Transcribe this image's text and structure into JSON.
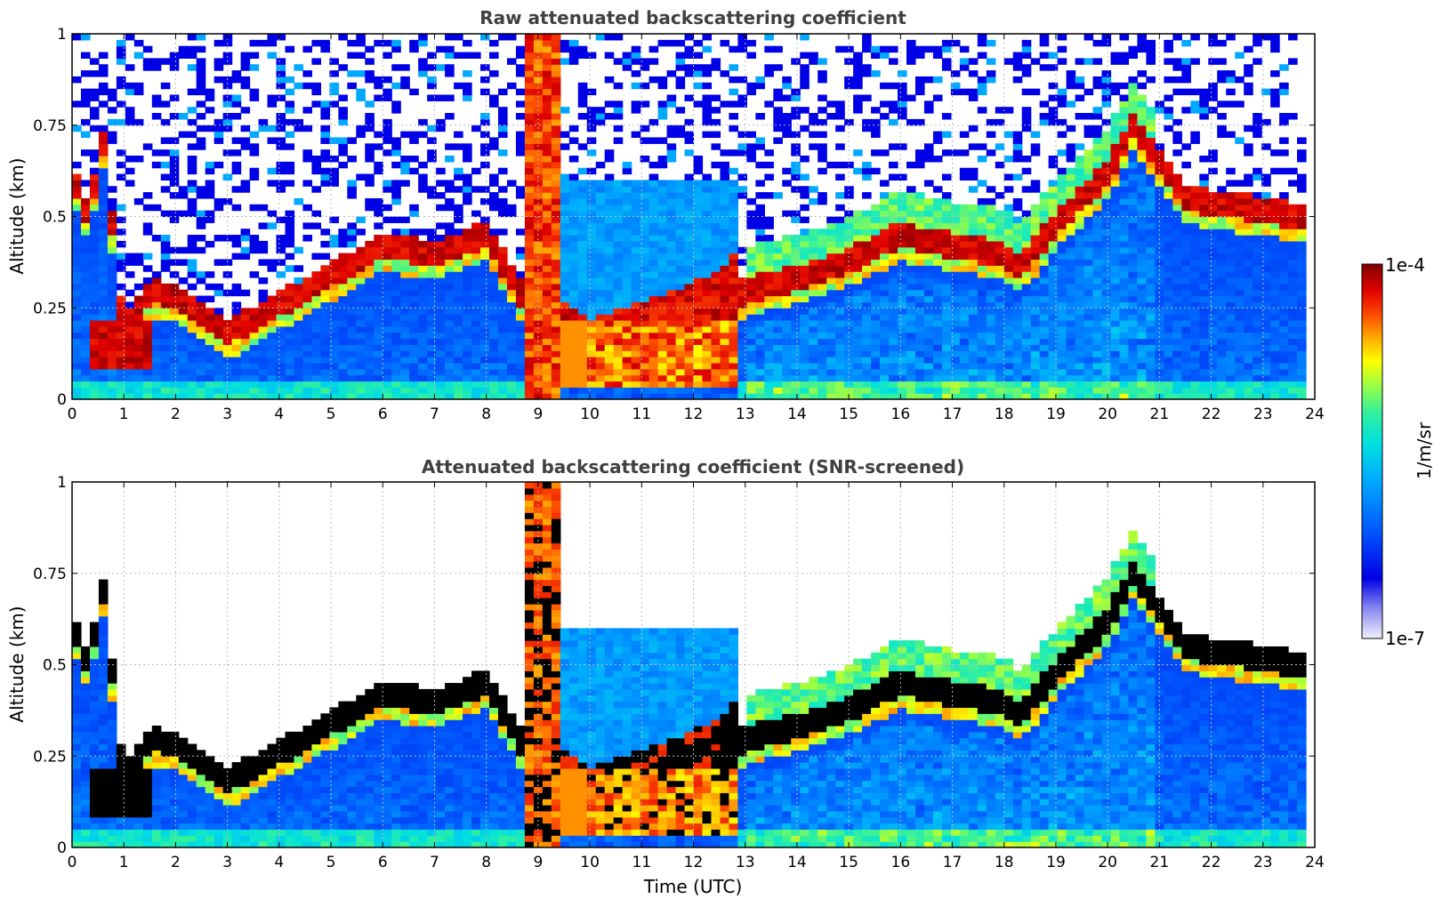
{
  "chart_data": [
    {
      "type": "heatmap",
      "title": "Raw attenuated backscattering coefficient",
      "xlabel": "",
      "ylabel": "Altitude (km)",
      "xlim": [
        0,
        24
      ],
      "ylim": [
        0,
        1
      ],
      "xticks": [
        "0",
        "1",
        "2",
        "3",
        "4",
        "5",
        "6",
        "7",
        "8",
        "9",
        "10",
        "11",
        "12",
        "13",
        "14",
        "15",
        "16",
        "17",
        "18",
        "19",
        "20",
        "21",
        "22",
        "23",
        "24"
      ],
      "yticks": [
        "0",
        "0.25",
        "0.5",
        "0.75",
        "1"
      ],
      "x_data_end_hours": 23.8,
      "color_scale": "log",
      "layer_base_km": [
        [
          0.0,
          0.62
        ],
        [
          0.3,
          0.5
        ],
        [
          0.6,
          0.7
        ],
        [
          1.0,
          0.18
        ],
        [
          1.5,
          0.3
        ],
        [
          2.0,
          0.28
        ],
        [
          3.0,
          0.18
        ],
        [
          4.0,
          0.26
        ],
        [
          5.0,
          0.34
        ],
        [
          6.0,
          0.42
        ],
        [
          7.0,
          0.4
        ],
        [
          8.0,
          0.45
        ],
        [
          8.7,
          0.28
        ],
        [
          9.5,
          0.15
        ],
        [
          10.0,
          0.1
        ],
        [
          11.0,
          0.15
        ],
        [
          12.0,
          0.2
        ],
        [
          12.5,
          0.24
        ],
        [
          13.0,
          0.3
        ],
        [
          14.0,
          0.33
        ],
        [
          15.0,
          0.38
        ],
        [
          16.0,
          0.45
        ],
        [
          17.0,
          0.42
        ],
        [
          18.0,
          0.4
        ],
        [
          18.3,
          0.36
        ],
        [
          19.0,
          0.48
        ],
        [
          20.0,
          0.62
        ],
        [
          20.5,
          0.75
        ],
        [
          21.0,
          0.65
        ],
        [
          21.5,
          0.55
        ],
        [
          23.8,
          0.5
        ]
      ],
      "notes": [
        "Thick low cloud 8.7–12.8 UTC reaching the surface",
        "Elevated layer rising from 0.3 to 0.75 km between 13 and 20.7 UTC"
      ]
    },
    {
      "type": "heatmap",
      "title": "Attenuated backscattering coefficient (SNR-screened)",
      "xlabel": "Time (UTC)",
      "ylabel": "Altitude (km)",
      "xlim": [
        0,
        24
      ],
      "ylim": [
        0,
        1
      ],
      "xticks": [
        "0",
        "1",
        "2",
        "3",
        "4",
        "5",
        "6",
        "7",
        "8",
        "9",
        "10",
        "11",
        "12",
        "13",
        "14",
        "15",
        "16",
        "17",
        "18",
        "19",
        "20",
        "21",
        "22",
        "23",
        "24"
      ],
      "yticks": [
        "0",
        "0.25",
        "0.5",
        "0.75",
        "1"
      ],
      "x_data_end_hours": 23.8,
      "color_scale": "log",
      "saturated_color": "#000000"
    }
  ],
  "colorbar": {
    "label": "1/m/sr",
    "max_label": "1e-4",
    "min_label": "1e-7",
    "colormap": [
      "#f0f0fb",
      "#8888f0",
      "#0000e6",
      "#0060ff",
      "#00a8ff",
      "#00e0e0",
      "#30f0a0",
      "#a0ff40",
      "#ffff00",
      "#ffb000",
      "#ff5000",
      "#e00000",
      "#800000"
    ]
  }
}
